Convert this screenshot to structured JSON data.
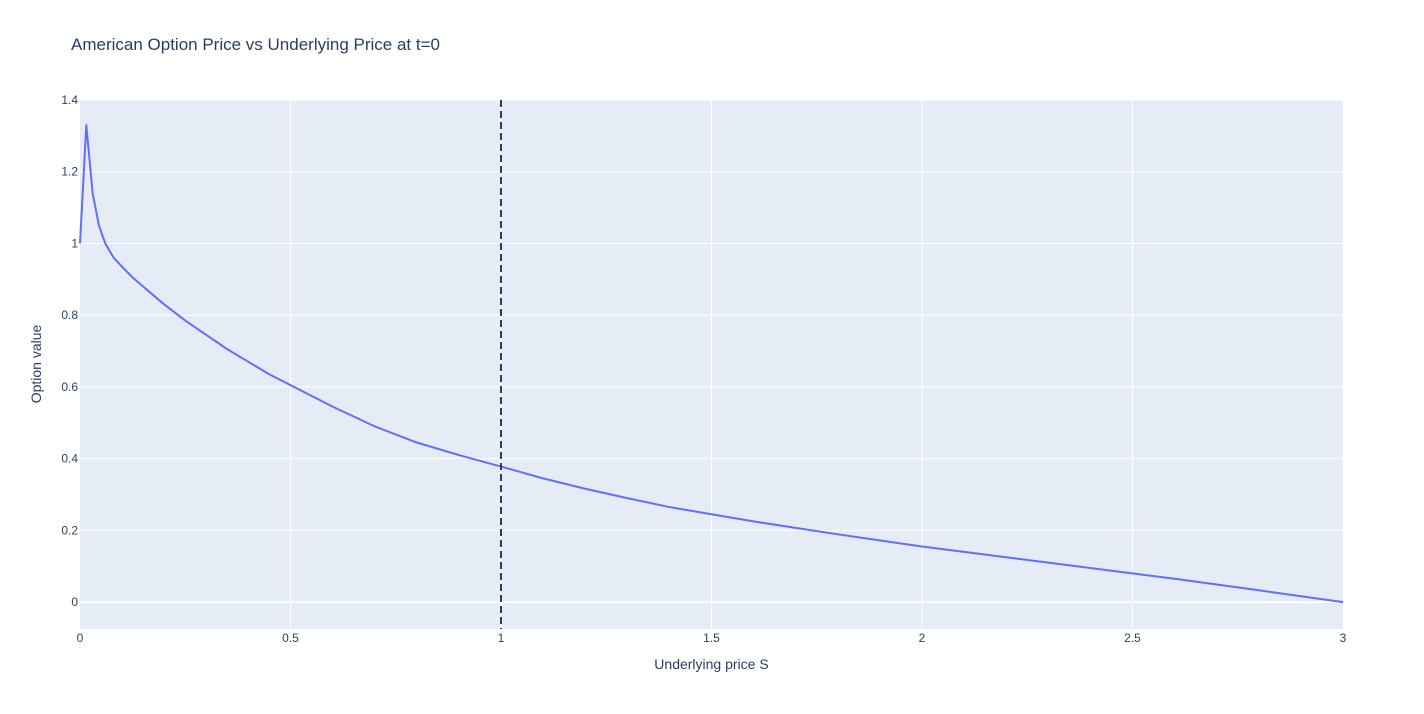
{
  "chart_data": {
    "type": "line",
    "title": "American Option Price vs Underlying Price at t=0",
    "xlabel": "Underlying price S",
    "ylabel": "Option value",
    "xlim": [
      0,
      3
    ],
    "ylim": [
      -0.075,
      1.4
    ],
    "x_ticks": [
      0,
      0.5,
      1,
      1.5,
      2,
      2.5,
      3
    ],
    "x_tick_labels": [
      "0",
      "0.5",
      "1",
      "1.5",
      "2",
      "2.5",
      "3"
    ],
    "y_ticks": [
      0,
      0.2,
      0.4,
      0.6,
      0.8,
      1,
      1.2,
      1.4
    ],
    "y_tick_labels": [
      "0",
      "0.2",
      "0.4",
      "0.6",
      "0.8",
      "1",
      "1.2",
      "1.4"
    ],
    "grid": true,
    "colors": {
      "plot_background": "#e5ecf6",
      "grid": "#ffffff",
      "line": "#636efa",
      "reference_line": "#2a3f5f",
      "text": "#2a3f5f"
    },
    "reference_lines": [
      {
        "orientation": "vertical",
        "x": 1,
        "style": "dashed"
      }
    ],
    "series": [
      {
        "x": [
          0,
          0.015,
          0.03,
          0.045,
          0.06,
          0.08,
          0.1,
          0.125,
          0.15,
          0.2,
          0.25,
          0.3,
          0.35,
          0.4,
          0.45,
          0.5,
          0.6,
          0.7,
          0.8,
          0.9,
          1.0,
          1.1,
          1.2,
          1.3,
          1.4,
          1.5,
          1.6,
          1.7,
          1.8,
          1.9,
          2.0,
          2.2,
          2.4,
          2.6,
          2.8,
          3.0
        ],
        "y": [
          1.0,
          1.33,
          1.14,
          1.05,
          1.0,
          0.96,
          0.935,
          0.905,
          0.88,
          0.83,
          0.785,
          0.745,
          0.705,
          0.67,
          0.635,
          0.605,
          0.545,
          0.49,
          0.445,
          0.41,
          0.378,
          0.345,
          0.316,
          0.29,
          0.265,
          0.245,
          0.225,
          0.207,
          0.189,
          0.172,
          0.155,
          0.125,
          0.095,
          0.065,
          0.033,
          0.0
        ]
      }
    ]
  }
}
